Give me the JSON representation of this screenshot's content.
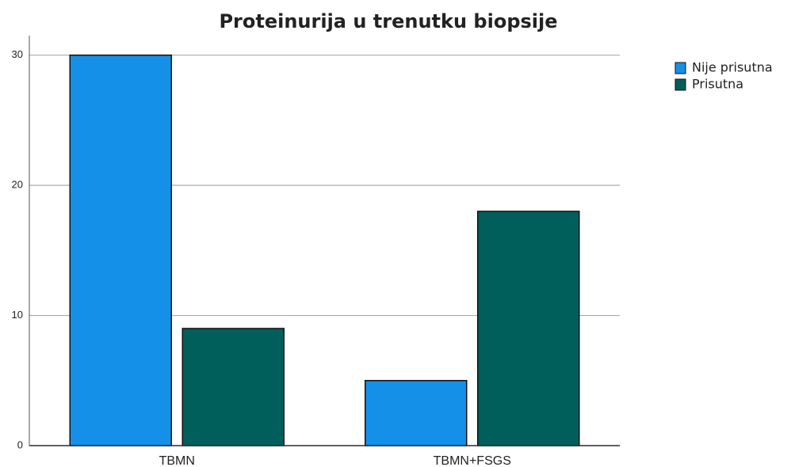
{
  "chart_data": {
    "type": "bar",
    "title": "Proteinurija u trenutku biopsije",
    "categories": [
      "TBMN",
      "TBMN+FSGS"
    ],
    "series": [
      {
        "name": "Nije prisutna",
        "color": "#1590e8",
        "values": [
          30,
          5
        ]
      },
      {
        "name": "Prisutna",
        "color": "#005f5b",
        "values": [
          9,
          18
        ]
      }
    ],
    "ylim": [
      0,
      31.5
    ],
    "yticks": [
      0,
      10,
      20,
      30
    ],
    "grid": true,
    "legend": "right"
  }
}
